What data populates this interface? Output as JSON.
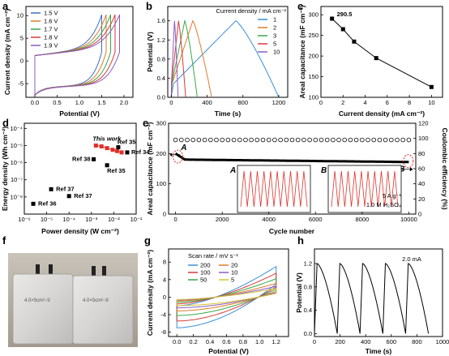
{
  "panels": {
    "a": {
      "label": "a",
      "xlabel": "Potential (V)",
      "ylabel": "Current density (mA cm⁻²)"
    },
    "b": {
      "label": "b",
      "xlabel": "Time (s)",
      "ylabel": "Potential (V)",
      "legend_title": "Current density / mA cm⁻²"
    },
    "c": {
      "label": "c",
      "xlabel": "Current density (mA cm⁻²)",
      "ylabel": "Areal capacitance (mF cm⁻²)",
      "annotation": "290.5"
    },
    "d": {
      "label": "d",
      "xlabel": "Power density (W cm⁻²)",
      "ylabel": "Energy density (Wh cm⁻²)"
    },
    "e": {
      "label": "e",
      "xlabel": "Cycle number",
      "ylabel_left": "Areal capacitance (mF cm⁻²)",
      "ylabel_right": "Coulombic efficiency (%)",
      "note1": "5 A g⁻¹",
      "note2": "1.0 M H₂SO₄",
      "markA": "A",
      "markB": "B"
    },
    "f": {
      "label": "f"
    },
    "g": {
      "label": "g",
      "xlabel": "Potential (V)",
      "ylabel": "Current density (mA cm⁻²)",
      "legend_title": "Scan rate / mV s⁻¹"
    },
    "h": {
      "label": "h",
      "xlabel": "Time (s)",
      "ylabel": "Potential (V)",
      "annotation": "2.0 mA"
    }
  },
  "chart_data": [
    {
      "panel": "a",
      "type": "line",
      "xlim": [
        -0.2,
        2.2
      ],
      "ylim": [
        -8,
        12
      ],
      "xticks": [
        0.0,
        0.5,
        1.0,
        1.5,
        2.0
      ],
      "xtick_labels": [
        "0.0",
        "0.5",
        "1.0",
        "1.5",
        "2.0"
      ],
      "yticks": [
        -5,
        0,
        5,
        10
      ],
      "ytick_labels": [
        "-5",
        "0",
        "5",
        "10"
      ],
      "series": [
        {
          "name": "1.5 V",
          "vmax": 1.5,
          "color": "#3b6ec9"
        },
        {
          "name": "1.6 V",
          "vmax": 1.6,
          "color": "#e07b2c"
        },
        {
          "name": "1.7 V",
          "vmax": 1.7,
          "color": "#3aa845"
        },
        {
          "name": "1.8 V",
          "vmax": 1.8,
          "color": "#d93a3a"
        },
        {
          "name": "1.9 V",
          "vmax": 1.9,
          "color": "#8a5cc2"
        }
      ]
    },
    {
      "panel": "b",
      "type": "line",
      "xlim": [
        -40,
        1300
      ],
      "ylim": [
        0,
        1.9
      ],
      "xticks": [
        0,
        400,
        800,
        1200
      ],
      "xtick_labels": [
        "0",
        "400",
        "800",
        "1200"
      ],
      "yticks": [
        0.0,
        0.4,
        0.8,
        1.2,
        1.6
      ],
      "ytick_labels": [
        "0.0",
        "0.4",
        "0.8",
        "1.2",
        "1.6"
      ],
      "series": [
        {
          "name": "1",
          "peak_t": 720,
          "end_t": 1200,
          "color": "#3b8fd9"
        },
        {
          "name": "2",
          "peak_t": 240,
          "end_t": 450,
          "color": "#e07b2c"
        },
        {
          "name": "3",
          "peak_t": 150,
          "end_t": 290,
          "color": "#3aa845"
        },
        {
          "name": "5",
          "peak_t": 80,
          "end_t": 160,
          "color": "#d93a3a"
        },
        {
          "name": "10",
          "peak_t": 35,
          "end_t": 75,
          "color": "#8a5cc2"
        }
      ]
    },
    {
      "panel": "c",
      "type": "line",
      "xlim": [
        0,
        11
      ],
      "ylim": [
        100,
        320
      ],
      "xticks": [
        0,
        2,
        4,
        6,
        8,
        10
      ],
      "xtick_labels": [
        "0",
        "2",
        "4",
        "6",
        "8",
        "10"
      ],
      "yticks": [
        100,
        150,
        200,
        250,
        300
      ],
      "ytick_labels": [
        "100",
        "150",
        "200",
        "250",
        "300"
      ],
      "x": [
        1,
        2,
        3,
        5,
        10
      ],
      "y": [
        290.5,
        265,
        235,
        195,
        125
      ]
    },
    {
      "panel": "d",
      "type": "scatter",
      "log": true,
      "xlim_exp": [
        -6,
        -1
      ],
      "ylim_exp": [
        -9,
        -3.7
      ],
      "xtick_labels": [
        "10⁻⁶",
        "10⁻⁵",
        "10⁻⁴",
        "10⁻³",
        "10⁻²",
        "10⁻¹"
      ],
      "ytick_labels": [
        "10⁻⁸",
        "10⁻⁷",
        "10⁻⁶",
        "10⁻⁵",
        "10⁻⁴"
      ],
      "this_work_label": "This work",
      "this_work": [
        [
          -2.8,
          -5.0
        ],
        [
          -2.55,
          -5.05
        ],
        [
          -2.3,
          -5.15
        ],
        [
          -2.05,
          -5.25
        ],
        [
          -1.85,
          -5.32
        ],
        [
          -1.65,
          -5.4
        ]
      ],
      "refs": [
        {
          "name": "Ref 35",
          "x": -1.8,
          "y": -5.1
        },
        {
          "name": "Ref 34",
          "x": -1.4,
          "y": -5.4
        },
        {
          "name": "Ref 38",
          "x": -2.9,
          "y": -5.8
        },
        {
          "name": "Ref 35",
          "x": -2.3,
          "y": -6.15
        },
        {
          "name": "Ref 37",
          "x": -4.8,
          "y": -7.55
        },
        {
          "name": "Ref 37",
          "x": -4.0,
          "y": -7.95
        },
        {
          "name": "Ref 36",
          "x": -5.6,
          "y": -8.4
        }
      ]
    },
    {
      "panel": "e",
      "type": "scatter",
      "xlim": [
        -300,
        10300
      ],
      "ylim_left": [
        0,
        300
      ],
      "ylim_right": [
        0,
        120
      ],
      "xticks": [
        0,
        2000,
        4000,
        6000,
        8000,
        10000
      ],
      "xtick_labels": [
        "0",
        "2000",
        "4000",
        "6000",
        "8000",
        "10000"
      ],
      "yticks_left": [
        0,
        100,
        200,
        300
      ],
      "ytick_labels_left": [
        "0",
        "100",
        "200",
        "300"
      ],
      "yticks_right": [
        0,
        20,
        40,
        60,
        80,
        100,
        120
      ],
      "ytick_labels_right": [
        "0",
        "20",
        "40",
        "60",
        "80",
        "100",
        "120"
      ],
      "capacitance_start": 200,
      "capacitance_plateau": 180,
      "capacitance_end": 172,
      "efficiency": 98
    },
    {
      "panel": "g",
      "type": "line",
      "xlim": [
        -0.1,
        1.35
      ],
      "ylim": [
        -9,
        11
      ],
      "xticks": [
        0.0,
        0.2,
        0.4,
        0.6,
        0.8,
        1.0,
        1.2
      ],
      "xtick_labels": [
        "0.0",
        "0.2",
        "0.4",
        "0.6",
        "0.8",
        "1.0",
        "1.2"
      ],
      "yticks": [
        -8,
        -4,
        0,
        4,
        8
      ],
      "ytick_labels": [
        "-8",
        "-4",
        "0",
        "4",
        "8"
      ],
      "series": [
        {
          "name": "200",
          "scale": 1.0,
          "color": "#3b8fd9"
        },
        {
          "name": "100",
          "scale": 0.78,
          "color": "#d93a3a"
        },
        {
          "name": "50",
          "scale": 0.6,
          "color": "#3aa845"
        },
        {
          "name": "20",
          "scale": 0.45,
          "color": "#e07b2c"
        },
        {
          "name": "10",
          "scale": 0.35,
          "color": "#8a5cc2"
        },
        {
          "name": "5",
          "scale": 0.28,
          "color": "#d9c22e"
        }
      ]
    },
    {
      "panel": "h",
      "type": "line",
      "xlim": [
        0,
        1000
      ],
      "ylim": [
        -0.05,
        1.45
      ],
      "xticks": [
        0,
        200,
        400,
        600,
        800,
        1000
      ],
      "xtick_labels": [
        "0",
        "200",
        "400",
        "600",
        "800",
        "1000"
      ],
      "yticks": [
        0.0,
        0.4,
        0.8,
        1.2
      ],
      "ytick_labels": [
        "0.0",
        "0.4",
        "0.8",
        "1.2"
      ],
      "cycles": 5,
      "period": 178,
      "charge_time": 20,
      "vmax": 1.2
    }
  ],
  "photo": {
    "label1": "4.0×5cm²-①",
    "label2": "4.0×5cm²-②"
  }
}
